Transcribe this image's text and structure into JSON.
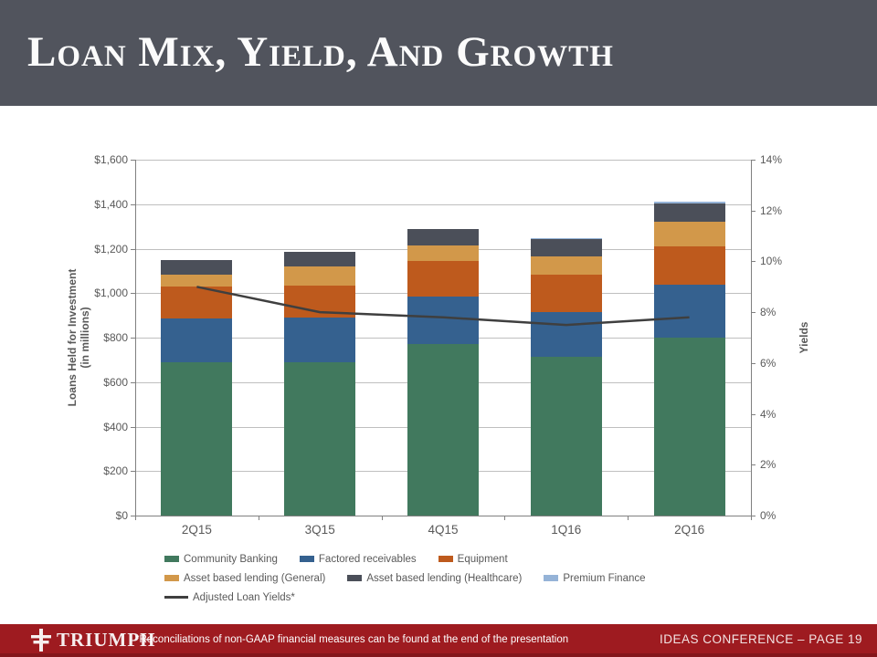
{
  "header": {
    "title": "Loan Mix, Yield, And Growth"
  },
  "colors": {
    "header_bg": "#51545D",
    "footer_bg": "#9E1B20",
    "footer_bg_dark": "#84161B",
    "grid": "#BFBFBF",
    "axis": "#808080",
    "text": "#595959"
  },
  "chart_data": {
    "type": "bar",
    "subtype": "stacked-column-with-line",
    "categories": [
      "2Q15",
      "3Q15",
      "4Q15",
      "1Q16",
      "2Q16"
    ],
    "series": [
      {
        "name": "Community Banking",
        "color": "#41795E",
        "values": [
          690,
          690,
          770,
          715,
          800
        ]
      },
      {
        "name": "Factored receivables",
        "color": "#35618F",
        "values": [
          195,
          200,
          215,
          200,
          240
        ]
      },
      {
        "name": "Equipment",
        "color": "#BE5A1D",
        "values": [
          145,
          145,
          160,
          170,
          170
        ]
      },
      {
        "name": "Asset based lending (General)",
        "color": "#D2984A",
        "values": [
          55,
          85,
          70,
          80,
          110
        ]
      },
      {
        "name": "Asset based lending (Healthcare)",
        "color": "#4B4F59",
        "values": [
          65,
          65,
          75,
          80,
          85
        ]
      },
      {
        "name": "Premium Finance",
        "color": "#95B3D7",
        "values": [
          0,
          0,
          0,
          3,
          5
        ]
      }
    ],
    "totals": [
      1150,
      1185,
      1290,
      1248,
      1410
    ],
    "line_series": {
      "name": "Adjusted Loan Yields*",
      "color": "#3F3F3F",
      "values": [
        9.0,
        8.0,
        7.8,
        7.5,
        7.8
      ]
    },
    "left_axis": {
      "title": "Loans Held for Investment",
      "title2": "(in millions)",
      "min": 0,
      "max": 1600,
      "step": 200,
      "tick_labels": [
        "$0",
        "$200",
        "$400",
        "$600",
        "$800",
        "$1,000",
        "$1,200",
        "$1,400",
        "$1,600"
      ]
    },
    "right_axis": {
      "title": "Yields",
      "min": 0,
      "max": 14,
      "step": 2,
      "tick_labels": [
        "0%",
        "2%",
        "4%",
        "6%",
        "8%",
        "10%",
        "12%",
        "14%"
      ]
    },
    "grid": true,
    "legend_position": "bottom"
  },
  "footer": {
    "logo_text": "TRIUMPH",
    "footnote": "*Reconciliations of non-GAAP financial measures can be found at the end of the presentation",
    "page_label": "IDEAS CONFERENCE – PAGE 19"
  }
}
